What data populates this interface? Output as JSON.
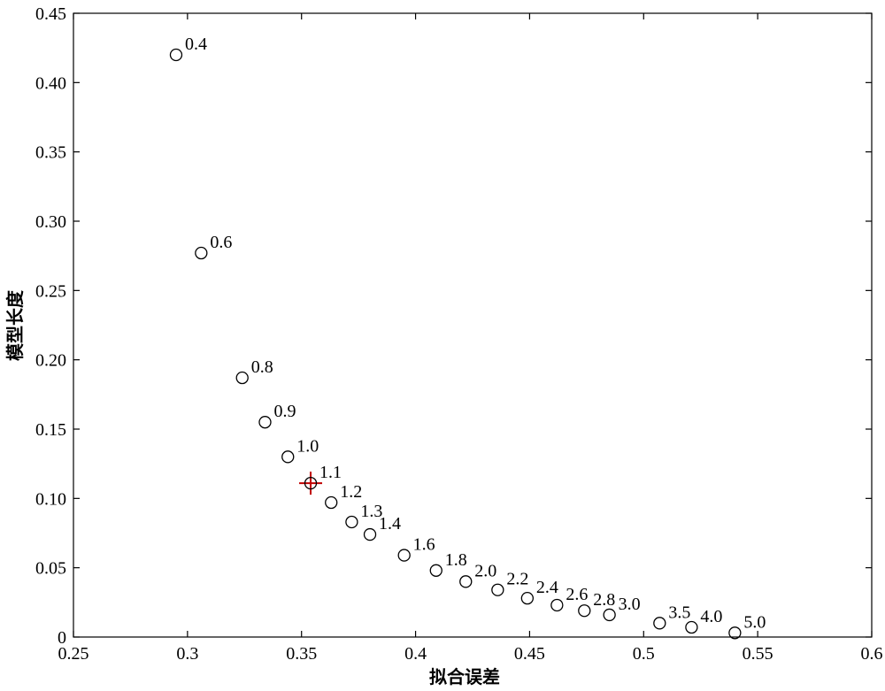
{
  "chart_data": {
    "type": "scatter",
    "title": "",
    "xlabel": "拟合误差",
    "ylabel": "模型长度",
    "xlim": [
      0.25,
      0.6
    ],
    "ylim": [
      0,
      0.45
    ],
    "xticks": [
      0.25,
      0.3,
      0.35,
      0.4,
      0.45,
      0.5,
      0.55,
      0.6
    ],
    "xtick_labels": [
      "0.25",
      "0.3",
      "0.35",
      "0.4",
      "0.45",
      "0.5",
      "0.55",
      "0.6"
    ],
    "yticks": [
      0,
      0.05,
      0.1,
      0.15,
      0.2,
      0.25,
      0.3,
      0.35,
      0.4,
      0.45
    ],
    "ytick_labels": [
      "0",
      "0.05",
      "0.10",
      "0.15",
      "0.20",
      "0.25",
      "0.30",
      "0.35",
      "0.40",
      "0.45"
    ],
    "grid": false,
    "marker": "open-circle",
    "highlight_color": "#c00000",
    "points": [
      {
        "x": 0.295,
        "y": 0.42,
        "label": "0.4"
      },
      {
        "x": 0.306,
        "y": 0.277,
        "label": "0.6"
      },
      {
        "x": 0.324,
        "y": 0.187,
        "label": "0.8"
      },
      {
        "x": 0.334,
        "y": 0.155,
        "label": "0.9"
      },
      {
        "x": 0.344,
        "y": 0.13,
        "label": "1.0"
      },
      {
        "x": 0.354,
        "y": 0.111,
        "label": "1.1",
        "highlight": true
      },
      {
        "x": 0.363,
        "y": 0.097,
        "label": "1.2"
      },
      {
        "x": 0.372,
        "y": 0.083,
        "label": "1.3"
      },
      {
        "x": 0.38,
        "y": 0.074,
        "label": "1.4"
      },
      {
        "x": 0.395,
        "y": 0.059,
        "label": "1.6"
      },
      {
        "x": 0.409,
        "y": 0.048,
        "label": "1.8"
      },
      {
        "x": 0.422,
        "y": 0.04,
        "label": "2.0"
      },
      {
        "x": 0.436,
        "y": 0.034,
        "label": "2.2"
      },
      {
        "x": 0.449,
        "y": 0.028,
        "label": "2.4"
      },
      {
        "x": 0.462,
        "y": 0.023,
        "label": "2.6"
      },
      {
        "x": 0.474,
        "y": 0.019,
        "label": "2.8"
      },
      {
        "x": 0.485,
        "y": 0.016,
        "label": "3.0"
      },
      {
        "x": 0.507,
        "y": 0.01,
        "label": "3.5"
      },
      {
        "x": 0.521,
        "y": 0.007,
        "label": "4.0"
      },
      {
        "x": 0.54,
        "y": 0.003,
        "label": "5.0"
      }
    ]
  }
}
